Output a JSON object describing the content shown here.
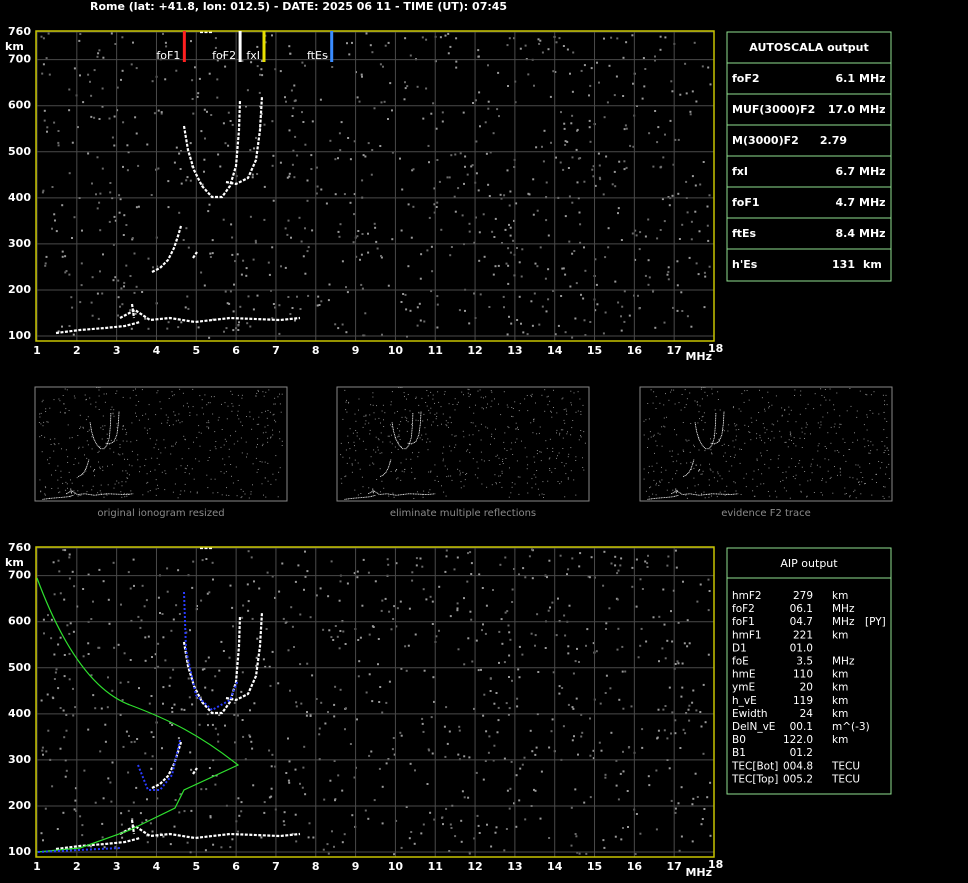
{
  "header": "Rome (lat: +41.8, lon: 012.5) - DATE: 2025 06 11 - TIME (UT): 07:45",
  "axes": {
    "y_unit": "km",
    "x_unit": "MHz",
    "xlim": [
      1,
      18
    ],
    "ylim": [
      100,
      760
    ],
    "xticks": [
      1,
      2,
      3,
      4,
      5,
      6,
      7,
      8,
      9,
      10,
      11,
      12,
      13,
      14,
      15,
      16,
      17,
      18
    ],
    "yticks": [
      100,
      200,
      300,
      400,
      500,
      600,
      700,
      760
    ]
  },
  "markers": [
    "foF1",
    "foF2",
    "fxI",
    "ftEs"
  ],
  "autoscala": {
    "title": "AUTOSCALA output",
    "rows": [
      {
        "name": "foF2",
        "value": 6.1,
        "unit": "MHz",
        "color": "#ffffff"
      },
      {
        "name": "MUF(3000)F2",
        "value": {
          "value": 17,
          "label": "17.0"
        },
        "unit": "MHz",
        "color": "#ffffff"
      },
      {
        "name": "M(3000)F2",
        "value": 2.79,
        "color": "#ffffff"
      },
      {
        "name": "fxI",
        "value": 6.7,
        "unit": "MHz",
        "color": "#e8e000"
      },
      {
        "name": "foF1",
        "value": 4.7,
        "unit": "MHz",
        "color": "#ff2020"
      },
      {
        "name": "ftEs",
        "value": 8.4,
        "unit": "MHz",
        "color": "#3a8cff"
      },
      {
        "name": "h'Es",
        "value": 131,
        "unit": "km",
        "color": "#ffffff"
      }
    ]
  },
  "thumbnails": [
    "original ionogram resized",
    "eliminate multiple reflections",
    "evidence F2 trace"
  ],
  "aip": {
    "title": "AIP output",
    "rows": [
      [
        "hmF2",
        "279",
        "km"
      ],
      [
        "foF2",
        "06.1",
        "MHz"
      ],
      [
        "foF1",
        "04.7",
        "MHz",
        "[PY]"
      ],
      [
        "hmF1",
        "221",
        "km"
      ],
      [
        "D1",
        "01.0"
      ],
      [
        "foE",
        "3.5",
        "MHz"
      ],
      [
        "hmE",
        "110",
        "km"
      ],
      [
        "ymE",
        "20",
        "km"
      ],
      [
        "h_vE",
        "119",
        "km"
      ],
      [
        "Ewidth",
        "24",
        "km"
      ],
      [
        "DelN_vE",
        "00.1",
        "m^(-3)"
      ],
      [
        "B0",
        "122.0",
        "km"
      ],
      [
        "B1",
        "01.2"
      ],
      [
        "TEC[Bot]",
        "004.8",
        "TECU"
      ],
      [
        "TEC[Top]",
        "005.2",
        "TECU"
      ]
    ]
  }
}
